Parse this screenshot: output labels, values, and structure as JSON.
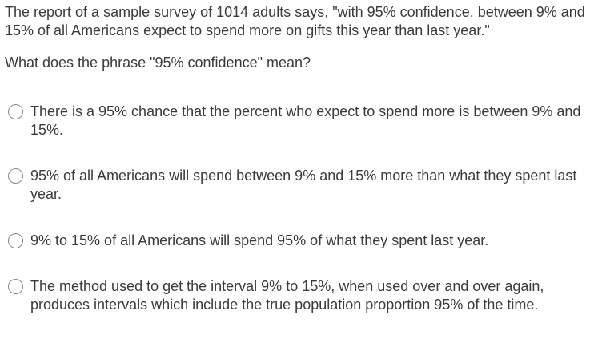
{
  "question": {
    "stem": "The report of a sample survey of 1014 adults says, \"with 95% confidence, between 9% and 15% of all Americans expect to spend more on gifts this year than last year.\"",
    "prompt": "What does the phrase \"95% confidence\" mean?"
  },
  "options": [
    {
      "label": "There is a 95% chance that the percent who expect to spend more is between 9% and 15%."
    },
    {
      "label": "95% of all Americans will spend between 9% and 15% more than what they spent last year."
    },
    {
      "label": "9% to 15% of all Americans will spend 95% of what they spent last year."
    },
    {
      "label": "The method used to get the interval 9% to 15%, when used over and over again, produces intervals which include the true population proportion 95% of the time."
    }
  ]
}
